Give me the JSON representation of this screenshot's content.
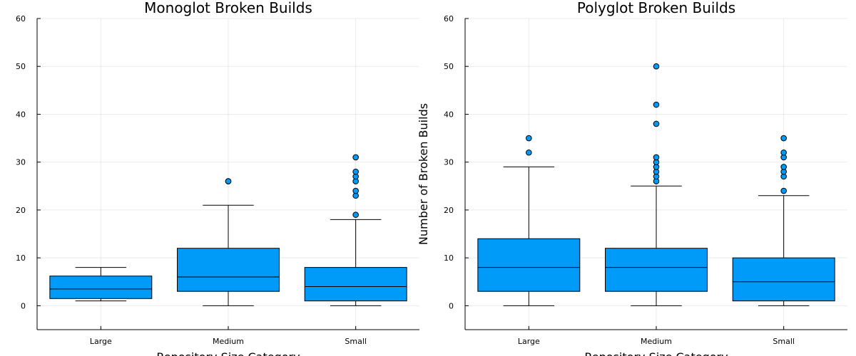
{
  "colors": {
    "box_fill": "#009af9",
    "background": "#ffffff",
    "axis": "#000000"
  },
  "chart_data": [
    {
      "type": "box",
      "title": "Monoglot Broken Builds",
      "xlabel": "Repository Size Category",
      "ylabel": "",
      "ylim": [
        -5,
        60
      ],
      "yticks": [
        0,
        10,
        20,
        30,
        40,
        50,
        60
      ],
      "grid": true,
      "categories": [
        "Large",
        "Medium",
        "Small"
      ],
      "boxes": [
        {
          "category": "Large",
          "min": 1,
          "q1": 1.5,
          "median": 3.5,
          "q3": 6.2,
          "max": 8,
          "outliers": []
        },
        {
          "category": "Medium",
          "min": 0,
          "q1": 3,
          "median": 6,
          "q3": 12,
          "max": 21,
          "outliers": [
            26,
            26
          ]
        },
        {
          "category": "Small",
          "min": 0,
          "q1": 1,
          "median": 4,
          "q3": 8,
          "max": 18,
          "outliers": [
            19,
            23,
            24,
            26,
            27,
            28,
            31
          ]
        }
      ]
    },
    {
      "type": "box",
      "title": "Polyglot Broken Builds",
      "xlabel": "Repository Size Category",
      "ylabel": "Number of Broken Builds",
      "ylim": [
        -5,
        60
      ],
      "yticks": [
        0,
        10,
        20,
        30,
        40,
        50,
        60
      ],
      "grid": true,
      "categories": [
        "Large",
        "Medium",
        "Small"
      ],
      "boxes": [
        {
          "category": "Large",
          "min": 0,
          "q1": 3,
          "median": 8,
          "q3": 14,
          "max": 29,
          "outliers": [
            32,
            35
          ]
        },
        {
          "category": "Medium",
          "min": 0,
          "q1": 3,
          "median": 8,
          "q3": 12,
          "max": 25,
          "outliers": [
            26,
            27,
            28,
            29,
            30,
            31,
            38,
            42,
            50
          ]
        },
        {
          "category": "Small",
          "min": 0,
          "q1": 1,
          "median": 5,
          "q3": 10,
          "max": 23,
          "outliers": [
            24,
            27,
            28,
            29,
            31,
            32,
            35
          ]
        }
      ]
    }
  ]
}
